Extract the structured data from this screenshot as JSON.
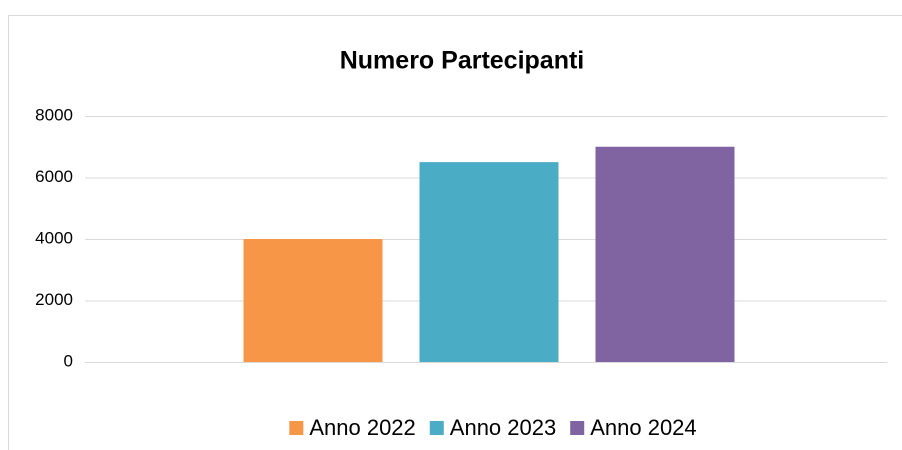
{
  "chart_data": {
    "type": "bar",
    "title": "Numero Partecipanti",
    "categories": [
      null
    ],
    "series": [
      {
        "name": "Anno 2022",
        "color": "#f79646",
        "values": [
          4000
        ]
      },
      {
        "name": "Anno 2023",
        "color": "#4bacc6",
        "values": [
          6500
        ]
      },
      {
        "name": "Anno 2024",
        "color": "#8064a2",
        "values": [
          7000
        ]
      }
    ],
    "ylim": [
      0,
      8000
    ],
    "yticks": [
      0,
      2000,
      4000,
      6000,
      8000
    ],
    "grid": true,
    "legend": "bottom"
  }
}
